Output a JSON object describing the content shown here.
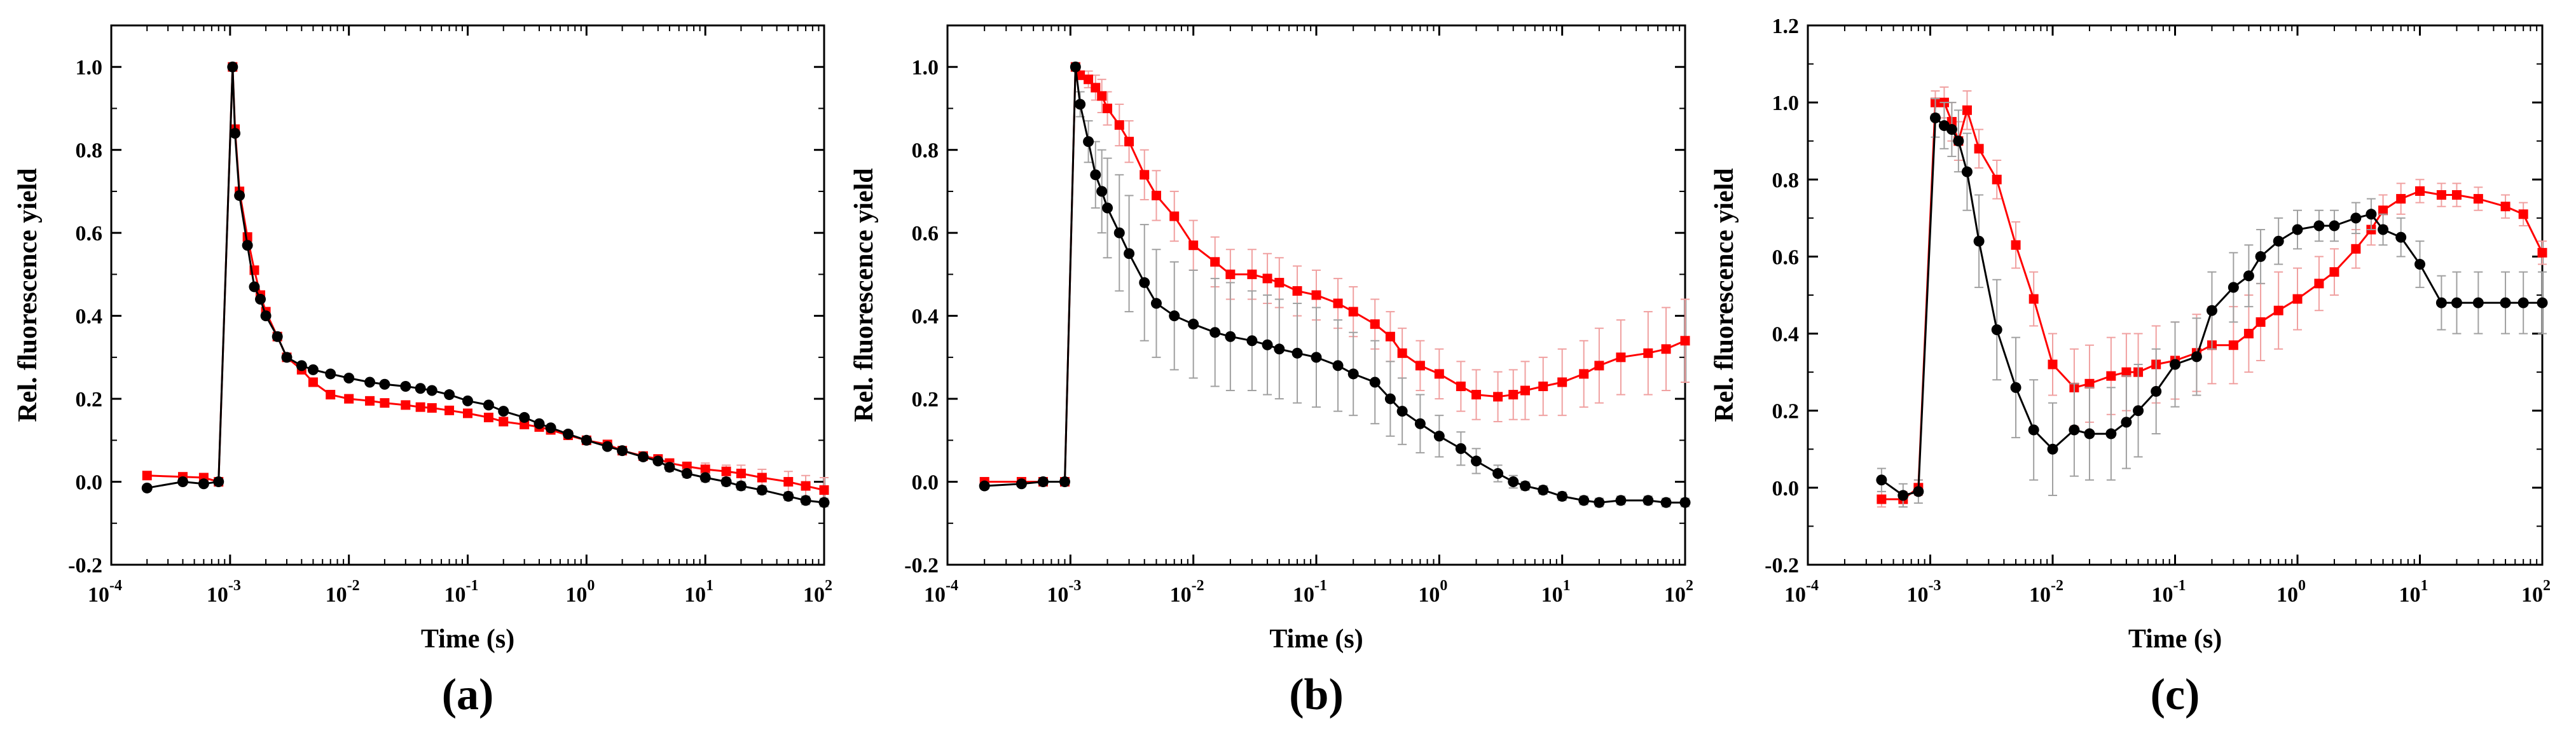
{
  "figure": {
    "colors": {
      "series_red": "#ff0000",
      "series_black": "#000000",
      "error_red": "#f0a0a0",
      "error_black": "#a0a0a0"
    }
  },
  "chart_data": [
    {
      "type": "line",
      "panel_label": "(a)",
      "xlabel": "Time (s)",
      "ylabel": "Rel. fluorescence yield",
      "xscale": "log",
      "xlim": [
        0.0001,
        100
      ],
      "ylim": [
        -0.2,
        1.1
      ],
      "xticks": [
        0.0001,
        0.001,
        0.01,
        0.1,
        1,
        10,
        100
      ],
      "xtick_mantissa": [
        "10",
        "10",
        "10",
        "10",
        "10",
        "10",
        "10"
      ],
      "xtick_exponents": [
        "-4",
        "-3",
        "-2",
        "-1",
        "0",
        "1",
        "2"
      ],
      "yticks": [
        -0.2,
        0.0,
        0.2,
        0.4,
        0.6,
        0.8,
        1.0
      ],
      "ytick_labels": [
        "-0.2",
        "0.0",
        "0.2",
        "0.4",
        "0.6",
        "0.8",
        "1.0"
      ],
      "series": [
        {
          "name": "red",
          "color": "#ff0000",
          "marker": "square",
          "x": [
            0.0002,
            0.0004,
            0.0006,
            0.0008,
            0.00105,
            0.0011,
            0.0012,
            0.0014,
            0.0016,
            0.0018,
            0.002,
            0.0025,
            0.003,
            0.004,
            0.005,
            0.007,
            0.01,
            0.015,
            0.02,
            0.03,
            0.04,
            0.05,
            0.07,
            0.1,
            0.15,
            0.2,
            0.3,
            0.4,
            0.5,
            0.7,
            1,
            1.5,
            2,
            3,
            4,
            5,
            7,
            10,
            15,
            20,
            30,
            50,
            70,
            100
          ],
          "y": [
            0.015,
            0.012,
            0.01,
            0.0,
            1.0,
            0.85,
            0.7,
            0.59,
            0.51,
            0.45,
            0.41,
            0.35,
            0.3,
            0.27,
            0.24,
            0.21,
            0.2,
            0.195,
            0.19,
            0.185,
            0.18,
            0.178,
            0.172,
            0.165,
            0.155,
            0.145,
            0.138,
            0.132,
            0.125,
            0.112,
            0.1,
            0.09,
            0.075,
            0.062,
            0.055,
            0.045,
            0.037,
            0.03,
            0.025,
            0.02,
            0.01,
            0.0,
            -0.01,
            -0.02
          ],
          "err": [
            0.005,
            0.005,
            0.005,
            0.005,
            0.005,
            0.005,
            0.005,
            0.005,
            0.005,
            0.005,
            0.005,
            0.005,
            0.005,
            0.005,
            0.005,
            0.005,
            0.005,
            0.005,
            0.005,
            0.005,
            0.005,
            0.005,
            0.005,
            0.005,
            0.005,
            0.005,
            0.005,
            0.005,
            0.005,
            0.005,
            0.005,
            0.005,
            0.005,
            0.005,
            0.005,
            0.01,
            0.01,
            0.015,
            0.015,
            0.02,
            0.02,
            0.025,
            0.025,
            0.03
          ]
        },
        {
          "name": "black",
          "color": "#000000",
          "marker": "circle",
          "x": [
            0.0002,
            0.0004,
            0.0006,
            0.0008,
            0.00105,
            0.0011,
            0.0012,
            0.0014,
            0.0016,
            0.0018,
            0.002,
            0.0025,
            0.003,
            0.004,
            0.005,
            0.007,
            0.01,
            0.015,
            0.02,
            0.03,
            0.04,
            0.05,
            0.07,
            0.1,
            0.15,
            0.2,
            0.3,
            0.4,
            0.5,
            0.7,
            1,
            1.5,
            2,
            3,
            4,
            5,
            7,
            10,
            15,
            20,
            30,
            50,
            70,
            100
          ],
          "y": [
            -0.015,
            0.0,
            -0.005,
            0.0,
            1.0,
            0.84,
            0.69,
            0.57,
            0.47,
            0.44,
            0.4,
            0.35,
            0.3,
            0.28,
            0.27,
            0.26,
            0.25,
            0.24,
            0.235,
            0.23,
            0.225,
            0.22,
            0.21,
            0.195,
            0.185,
            0.17,
            0.155,
            0.14,
            0.13,
            0.115,
            0.1,
            0.085,
            0.075,
            0.06,
            0.05,
            0.035,
            0.02,
            0.01,
            0.0,
            -0.01,
            -0.02,
            -0.035,
            -0.045,
            -0.05
          ],
          "err": [
            0.005,
            0.005,
            0.005,
            0.005,
            0.005,
            0.005,
            0.005,
            0.005,
            0.005,
            0.005,
            0.005,
            0.005,
            0.005,
            0.005,
            0.005,
            0.005,
            0.005,
            0.005,
            0.005,
            0.005,
            0.005,
            0.005,
            0.005,
            0.005,
            0.005,
            0.005,
            0.005,
            0.005,
            0.005,
            0.005,
            0.005,
            0.005,
            0.005,
            0.005,
            0.005,
            0.01,
            0.01,
            0.01,
            0.01,
            0.01,
            0.01,
            0.01,
            0.01,
            0.01
          ]
        }
      ]
    },
    {
      "type": "line",
      "panel_label": "(b)",
      "xlabel": "Time (s)",
      "ylabel": "Rel. fluorescence yield",
      "xscale": "log",
      "xlim": [
        0.0001,
        100
      ],
      "ylim": [
        -0.2,
        1.1
      ],
      "xticks": [
        0.0001,
        0.001,
        0.01,
        0.1,
        1,
        10,
        100
      ],
      "xtick_mantissa": [
        "10",
        "10",
        "10",
        "10",
        "10",
        "10",
        "10"
      ],
      "xtick_exponents": [
        "-4",
        "-3",
        "-2",
        "-1",
        "0",
        "1",
        "2"
      ],
      "yticks": [
        -0.2,
        0.0,
        0.2,
        0.4,
        0.6,
        0.8,
        1.0
      ],
      "ytick_labels": [
        "-0.2",
        "0.0",
        "0.2",
        "0.4",
        "0.6",
        "0.8",
        "1.0"
      ],
      "series": [
        {
          "name": "red",
          "color": "#ff0000",
          "marker": "square",
          "x": [
            0.0002,
            0.0004,
            0.0006,
            0.0009,
            0.0011,
            0.0012,
            0.0014,
            0.0016,
            0.0018,
            0.002,
            0.0025,
            0.003,
            0.004,
            0.005,
            0.007,
            0.01,
            0.015,
            0.02,
            0.03,
            0.04,
            0.05,
            0.07,
            0.1,
            0.15,
            0.2,
            0.3,
            0.4,
            0.5,
            0.7,
            1,
            1.5,
            2,
            3,
            4,
            5,
            7,
            10,
            15,
            20,
            30,
            50,
            70,
            100
          ],
          "y": [
            0.0,
            0.0,
            0.0,
            0.0,
            1.0,
            0.98,
            0.97,
            0.95,
            0.93,
            0.9,
            0.86,
            0.82,
            0.74,
            0.69,
            0.64,
            0.57,
            0.53,
            0.5,
            0.5,
            0.49,
            0.48,
            0.46,
            0.45,
            0.43,
            0.41,
            0.38,
            0.35,
            0.31,
            0.28,
            0.26,
            0.23,
            0.21,
            0.205,
            0.21,
            0.22,
            0.23,
            0.24,
            0.26,
            0.28,
            0.3,
            0.31,
            0.32,
            0.34
          ],
          "err": [
            0.005,
            0.005,
            0.005,
            0.005,
            0.005,
            0.01,
            0.02,
            0.03,
            0.04,
            0.04,
            0.05,
            0.05,
            0.06,
            0.06,
            0.06,
            0.06,
            0.06,
            0.06,
            0.06,
            0.06,
            0.06,
            0.06,
            0.06,
            0.06,
            0.06,
            0.06,
            0.06,
            0.06,
            0.06,
            0.06,
            0.06,
            0.06,
            0.06,
            0.06,
            0.07,
            0.07,
            0.08,
            0.08,
            0.09,
            0.09,
            0.1,
            0.1,
            0.1
          ]
        },
        {
          "name": "black",
          "color": "#000000",
          "marker": "circle",
          "x": [
            0.0002,
            0.0004,
            0.0006,
            0.0009,
            0.0011,
            0.0012,
            0.0014,
            0.0016,
            0.0018,
            0.002,
            0.0025,
            0.003,
            0.004,
            0.005,
            0.007,
            0.01,
            0.015,
            0.02,
            0.03,
            0.04,
            0.05,
            0.07,
            0.1,
            0.15,
            0.2,
            0.3,
            0.4,
            0.5,
            0.7,
            1,
            1.5,
            2,
            3,
            4,
            5,
            7,
            10,
            15,
            20,
            30,
            50,
            70,
            100
          ],
          "y": [
            -0.01,
            -0.005,
            0.0,
            0.0,
            1.0,
            0.91,
            0.82,
            0.74,
            0.7,
            0.66,
            0.6,
            0.55,
            0.48,
            0.43,
            0.4,
            0.38,
            0.36,
            0.35,
            0.34,
            0.33,
            0.32,
            0.31,
            0.3,
            0.28,
            0.26,
            0.24,
            0.2,
            0.17,
            0.14,
            0.11,
            0.08,
            0.05,
            0.02,
            0.0,
            -0.01,
            -0.02,
            -0.035,
            -0.045,
            -0.05,
            -0.045,
            -0.045,
            -0.05,
            -0.05
          ],
          "err": [
            0.005,
            0.005,
            0.005,
            0.005,
            0.005,
            0.03,
            0.05,
            0.08,
            0.1,
            0.12,
            0.14,
            0.14,
            0.14,
            0.13,
            0.13,
            0.13,
            0.13,
            0.13,
            0.12,
            0.12,
            0.12,
            0.12,
            0.12,
            0.11,
            0.1,
            0.1,
            0.09,
            0.08,
            0.07,
            0.05,
            0.04,
            0.03,
            0.02,
            0.015,
            0.01,
            0.01,
            0.01,
            0.01,
            0.01,
            0.01,
            0.01,
            0.01,
            0.01
          ]
        }
      ]
    },
    {
      "type": "line",
      "panel_label": "(c)",
      "xlabel": "Time (s)",
      "ylabel": "Rel. fluorescence yield",
      "xscale": "log",
      "xlim": [
        0.0001,
        100
      ],
      "ylim": [
        -0.2,
        1.2
      ],
      "xticks": [
        0.0001,
        0.001,
        0.01,
        0.1,
        1,
        10,
        100
      ],
      "xtick_mantissa": [
        "10",
        "10",
        "10",
        "10",
        "10",
        "10",
        "10"
      ],
      "xtick_exponents": [
        "-4",
        "-3",
        "-2",
        "-1",
        "0",
        "1",
        "2"
      ],
      "yticks": [
        -0.2,
        0.0,
        0.2,
        0.4,
        0.6,
        0.8,
        1.0,
        1.2
      ],
      "ytick_labels": [
        "-0.2",
        "0.0",
        "0.2",
        "0.4",
        "0.6",
        "0.8",
        "1.0",
        "1.2"
      ],
      "series": [
        {
          "name": "red",
          "color": "#ff0000",
          "marker": "square",
          "x": [
            0.0004,
            0.0006,
            0.0008,
            0.0011,
            0.0013,
            0.0015,
            0.0017,
            0.002,
            0.0025,
            0.0035,
            0.005,
            0.007,
            0.01,
            0.015,
            0.02,
            0.03,
            0.04,
            0.05,
            0.07,
            0.1,
            0.15,
            0.2,
            0.3,
            0.4,
            0.5,
            0.7,
            1,
            1.5,
            2,
            3,
            4,
            5,
            7,
            10,
            15,
            20,
            30,
            50,
            70,
            100
          ],
          "y": [
            -0.03,
            -0.03,
            0.0,
            1.0,
            1.0,
            0.95,
            0.9,
            0.98,
            0.88,
            0.8,
            0.63,
            0.49,
            0.32,
            0.26,
            0.27,
            0.29,
            0.3,
            0.3,
            0.32,
            0.33,
            0.35,
            0.37,
            0.37,
            0.4,
            0.43,
            0.46,
            0.49,
            0.53,
            0.56,
            0.62,
            0.67,
            0.72,
            0.75,
            0.77,
            0.76,
            0.76,
            0.75,
            0.73,
            0.71,
            0.61
          ],
          "err": [
            0.02,
            0.02,
            0.02,
            0.03,
            0.04,
            0.05,
            0.05,
            0.05,
            0.05,
            0.05,
            0.06,
            0.07,
            0.08,
            0.1,
            0.1,
            0.1,
            0.1,
            0.1,
            0.1,
            0.1,
            0.1,
            0.1,
            0.1,
            0.1,
            0.1,
            0.1,
            0.08,
            0.07,
            0.06,
            0.05,
            0.04,
            0.04,
            0.04,
            0.03,
            0.03,
            0.03,
            0.03,
            0.03,
            0.03,
            0.03
          ]
        },
        {
          "name": "black",
          "color": "#000000",
          "marker": "circle",
          "x": [
            0.0004,
            0.0006,
            0.0008,
            0.0011,
            0.0013,
            0.0015,
            0.0017,
            0.002,
            0.0025,
            0.0035,
            0.005,
            0.007,
            0.01,
            0.015,
            0.02,
            0.03,
            0.04,
            0.05,
            0.07,
            0.1,
            0.15,
            0.2,
            0.3,
            0.4,
            0.5,
            0.7,
            1,
            1.5,
            2,
            3,
            4,
            5,
            7,
            10,
            15,
            20,
            30,
            50,
            70,
            100
          ],
          "y": [
            0.02,
            -0.02,
            -0.01,
            0.96,
            0.94,
            0.93,
            0.9,
            0.82,
            0.64,
            0.41,
            0.26,
            0.15,
            0.1,
            0.15,
            0.14,
            0.14,
            0.17,
            0.2,
            0.25,
            0.32,
            0.34,
            0.46,
            0.52,
            0.55,
            0.6,
            0.64,
            0.67,
            0.68,
            0.68,
            0.7,
            0.71,
            0.67,
            0.65,
            0.58,
            0.48,
            0.48,
            0.48,
            0.48,
            0.48,
            0.48
          ],
          "err": [
            0.03,
            0.03,
            0.03,
            0.05,
            0.06,
            0.07,
            0.08,
            0.1,
            0.12,
            0.13,
            0.13,
            0.13,
            0.12,
            0.12,
            0.12,
            0.12,
            0.12,
            0.12,
            0.11,
            0.11,
            0.1,
            0.1,
            0.09,
            0.08,
            0.07,
            0.06,
            0.05,
            0.04,
            0.04,
            0.04,
            0.04,
            0.04,
            0.05,
            0.06,
            0.07,
            0.08,
            0.08,
            0.08,
            0.08,
            0.08
          ]
        }
      ]
    }
  ]
}
